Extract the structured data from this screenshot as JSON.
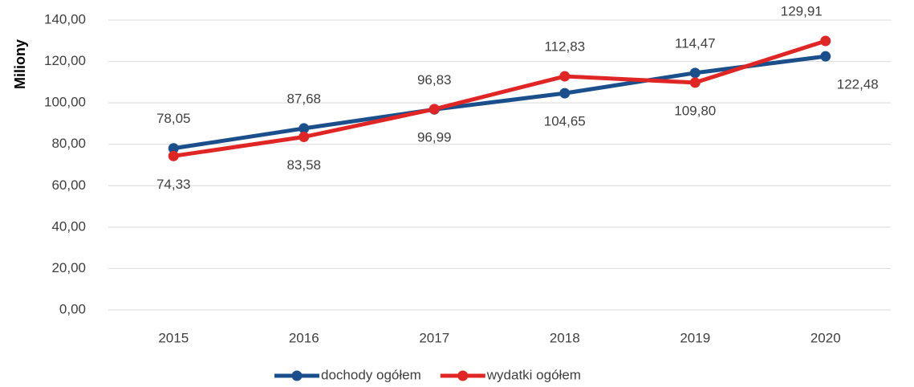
{
  "chart_data": {
    "type": "line",
    "y_label": "Miliony",
    "categories": [
      "2015",
      "2016",
      "2017",
      "2018",
      "2019",
      "2020"
    ],
    "series": [
      {
        "name": "dochody ogółem",
        "color": "#1b4f8c",
        "values": [
          78.05,
          87.68,
          96.83,
          104.65,
          114.47,
          122.48
        ],
        "value_labels": [
          "78,05",
          "87,68",
          "96,83",
          "104,65",
          "114,47",
          "122,48"
        ]
      },
      {
        "name": "wydatki ogółem",
        "color": "#e02525",
        "values": [
          74.33,
          83.58,
          96.99,
          112.83,
          109.8,
          129.91
        ],
        "value_labels": [
          "74,33",
          "83,58",
          "96,99",
          "112,83",
          "109,80",
          "129,91"
        ]
      }
    ],
    "ylim": [
      0,
      140
    ],
    "yticks": [
      {
        "value": 0,
        "label": "0,00"
      },
      {
        "value": 20,
        "label": "20,00"
      },
      {
        "value": 40,
        "label": "40,00"
      },
      {
        "value": 60,
        "label": "60,00"
      },
      {
        "value": 80,
        "label": "80,00"
      },
      {
        "value": 100,
        "label": "100,00"
      },
      {
        "value": 120,
        "label": "120,00"
      },
      {
        "value": 140,
        "label": "140,00"
      }
    ],
    "grid": true,
    "legend": "bottom"
  }
}
